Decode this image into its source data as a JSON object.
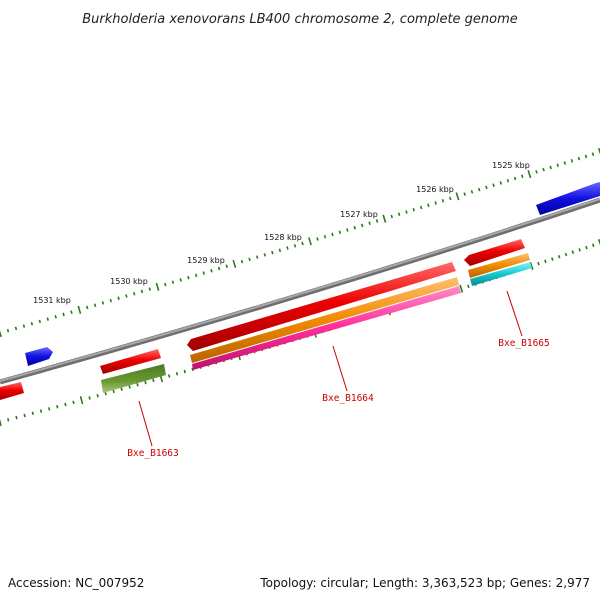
{
  "title": "Burkholderia xenovorans LB400 chromosome 2, complete genome",
  "footer": {
    "accession": "Accession: NC_007952",
    "summary": "Topology: circular; Length: 3,363,523 bp; Genes: 2,977"
  },
  "ruler_ticks": [
    "1525 kbp",
    "1526 kbp",
    "1527 kbp",
    "1528 kbp",
    "1529 kbp",
    "1530 kbp",
    "1531 kbp"
  ],
  "genes": [
    {
      "locus": "Bxe_B1663"
    },
    {
      "locus": "Bxe_B1664"
    },
    {
      "locus": "Bxe_B1665"
    }
  ],
  "colors": {
    "backbone": "#8a8a8a",
    "tick": "#2a7a1a",
    "cds_red": "#e00000",
    "plus_blue": "#1010e0",
    "olive": "#5a8a28",
    "orange": "#f08a00",
    "magenta": "#ff2d9a",
    "cyan": "#12c8d0",
    "leader": "#cc0000",
    "label": "#cc0000"
  }
}
